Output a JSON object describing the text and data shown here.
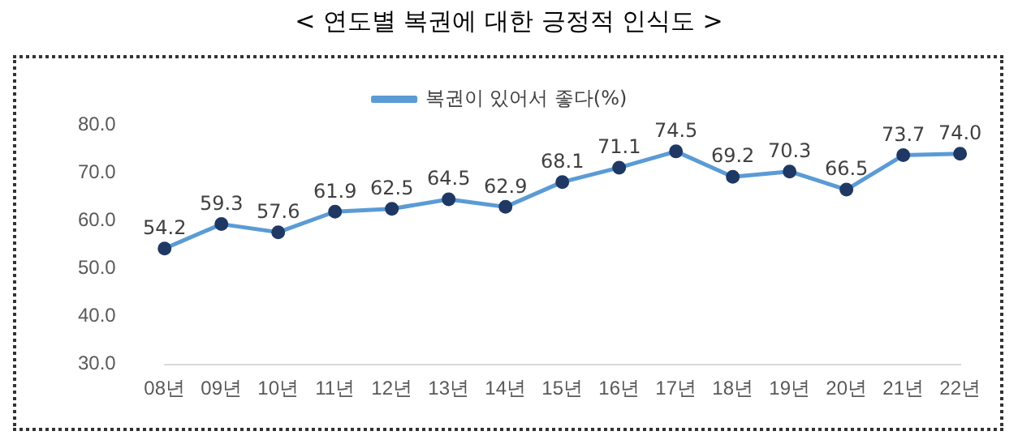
{
  "chart_data": {
    "type": "line",
    "title": "< 연도별 복권에 대한 긍정적 인식도 >",
    "categories": [
      "08년",
      "09년",
      "10년",
      "11년",
      "12년",
      "13년",
      "14년",
      "15년",
      "16년",
      "17년",
      "18년",
      "19년",
      "20년",
      "21년",
      "22년"
    ],
    "series": [
      {
        "name": "복권이 있어서 좋다(%)",
        "color": "#5b9bd5",
        "values": [
          54.2,
          59.3,
          57.6,
          61.9,
          62.5,
          64.5,
          62.9,
          68.1,
          71.1,
          74.5,
          69.2,
          70.3,
          66.5,
          73.7,
          74.0
        ],
        "value_labels": [
          "54.2",
          "59.3",
          "57.6",
          "61.9",
          "62.5",
          "64.5",
          "62.9",
          "68.1",
          "71.1",
          "74.5",
          "69.2",
          "70.3",
          "66.5",
          "73.7",
          "74.0"
        ]
      }
    ],
    "ylim": [
      30,
      80
    ],
    "yticks": [
      {
        "value": 30,
        "label": "30.0"
      },
      {
        "value": 40,
        "label": "40.0"
      },
      {
        "value": 50,
        "label": "50.0"
      },
      {
        "value": 60,
        "label": "60.0"
      },
      {
        "value": 70,
        "label": "70.0"
      },
      {
        "value": 80,
        "label": "80.0"
      }
    ],
    "grid": false,
    "legend": "top",
    "marker": "circle",
    "line_style": "solid"
  }
}
